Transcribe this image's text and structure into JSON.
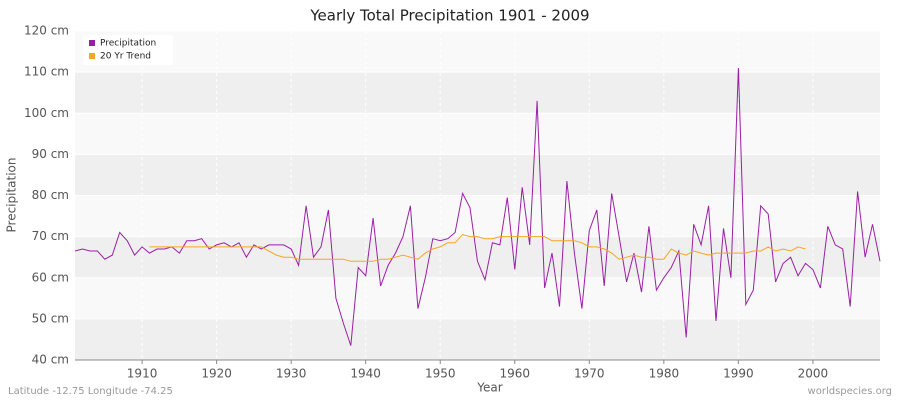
{
  "chart_data": {
    "type": "line",
    "title": "Yearly Total Precipitation 1901 - 2009",
    "x_label": "Year",
    "y_label": "Precipitation",
    "footer_left": "Latitude -12.75 Longitude -74.25",
    "footer_right": "worldspecies.org",
    "xlim": [
      1901,
      2009
    ],
    "ylim": [
      40,
      120
    ],
    "xticks": [
      1910,
      1920,
      1930,
      1940,
      1950,
      1960,
      1970,
      1980,
      1990,
      2000
    ],
    "yticks": [
      {
        "value": 40,
        "label": "40 cm"
      },
      {
        "value": 50,
        "label": "50 cm"
      },
      {
        "value": 60,
        "label": "60 cm"
      },
      {
        "value": 70,
        "label": "70 cm"
      },
      {
        "value": 80,
        "label": "80 cm"
      },
      {
        "value": 90,
        "label": "90 cm"
      },
      {
        "value": 100,
        "label": "100 cm"
      },
      {
        "value": 110,
        "label": "110 cm"
      },
      {
        "value": 120,
        "label": "120 cm"
      }
    ],
    "grid": true,
    "legend": "top-left",
    "x": [
      1901,
      1902,
      1903,
      1904,
      1905,
      1906,
      1907,
      1908,
      1909,
      1910,
      1911,
      1912,
      1913,
      1914,
      1915,
      1916,
      1917,
      1918,
      1919,
      1920,
      1921,
      1922,
      1923,
      1924,
      1925,
      1926,
      1927,
      1928,
      1929,
      1930,
      1931,
      1932,
      1933,
      1934,
      1935,
      1936,
      1937,
      1938,
      1939,
      1940,
      1941,
      1942,
      1943,
      1944,
      1945,
      1946,
      1947,
      1948,
      1949,
      1950,
      1951,
      1952,
      1953,
      1954,
      1955,
      1956,
      1957,
      1958,
      1959,
      1960,
      1961,
      1962,
      1963,
      1964,
      1965,
      1966,
      1967,
      1968,
      1969,
      1970,
      1971,
      1972,
      1973,
      1974,
      1975,
      1976,
      1977,
      1978,
      1979,
      1980,
      1981,
      1982,
      1983,
      1984,
      1985,
      1986,
      1987,
      1988,
      1989,
      1990,
      1991,
      1992,
      1993,
      1994,
      1995,
      1996,
      1997,
      1998,
      1999,
      2000,
      2001,
      2002,
      2003,
      2004,
      2005,
      2006,
      2007,
      2008,
      2009
    ],
    "series": [
      {
        "name": "Precipitation",
        "color": "#9b1fa6",
        "values": [
          66.5,
          67,
          66.5,
          66.5,
          64.5,
          65.5,
          71,
          69,
          65.5,
          67.5,
          66,
          67,
          67,
          67.5,
          66,
          69,
          69,
          69.5,
          67,
          68,
          68.5,
          67.5,
          68.5,
          65,
          68,
          67,
          68,
          68,
          68,
          67,
          63,
          77.5,
          65,
          67.5,
          76.5,
          55,
          49,
          43.5,
          62.5,
          60.5,
          74.5,
          58,
          63,
          66,
          70,
          77.5,
          52.5,
          60,
          69.5,
          69,
          69.5,
          71,
          80.5,
          77,
          64,
          59.5,
          68.5,
          68,
          79.5,
          62,
          82,
          68,
          103,
          57.5,
          66,
          53,
          83.5,
          66,
          52.5,
          71.5,
          76.5,
          58,
          80.5,
          70,
          59,
          66,
          56.5,
          72.5,
          57,
          60,
          62.5,
          66.5,
          45.5,
          73,
          68,
          77.5,
          49.5,
          72,
          60,
          111,
          53.5,
          57,
          77.5,
          75.5,
          59,
          63.5,
          65,
          60.5,
          63.5,
          62,
          57.5,
          72.5,
          68,
          67,
          53,
          81,
          65,
          73,
          64
        ]
      },
      {
        "name": "20 Yr Trend",
        "color": "#f5a623",
        "values": [
          null,
          null,
          null,
          null,
          null,
          null,
          null,
          null,
          null,
          null,
          67.5,
          67.5,
          67.5,
          67.5,
          67.5,
          67.5,
          67.5,
          67.5,
          67.5,
          67.5,
          67.5,
          67.5,
          67.5,
          67.5,
          67.5,
          67.5,
          66.5,
          65.5,
          65,
          65,
          64.5,
          64.5,
          64.5,
          64.5,
          64.5,
          64.5,
          64.5,
          64,
          64,
          64,
          64,
          64.5,
          64.5,
          65,
          65.5,
          65,
          64.5,
          66,
          67,
          67.5,
          68.5,
          68.5,
          70.5,
          70,
          70,
          69.5,
          69.5,
          70,
          70,
          70,
          70,
          70,
          70,
          70,
          69,
          69,
          69,
          69,
          68.5,
          67.5,
          67.5,
          67,
          66,
          64.5,
          65,
          65.5,
          65,
          65,
          64.5,
          64.5,
          67,
          66,
          65.5,
          66.5,
          66,
          65.5,
          66,
          66,
          66,
          66,
          66,
          66.5,
          66.5,
          67.5,
          66.5,
          67,
          66.5,
          67.5,
          67,
          null,
          null,
          null,
          null,
          null,
          null,
          null,
          null,
          null,
          null
        ]
      }
    ]
  }
}
